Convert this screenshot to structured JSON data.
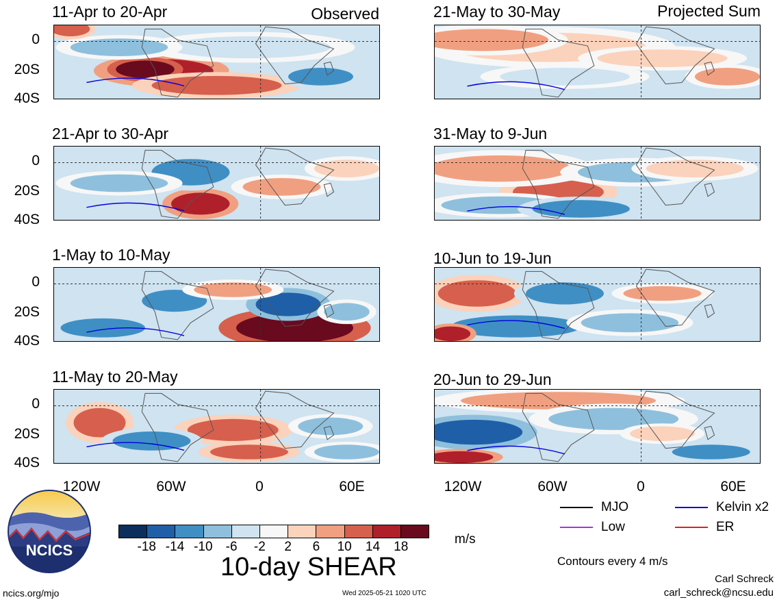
{
  "header": {
    "left_label": "Observed",
    "right_label": "Projected Sum"
  },
  "panels_left": [
    {
      "title": "11-Apr to 20-Apr"
    },
    {
      "title": "21-Apr to 30-Apr"
    },
    {
      "title": "1-May to 10-May"
    },
    {
      "title": "11-May to 20-May"
    }
  ],
  "panels_right": [
    {
      "title": "21-May to 30-May"
    },
    {
      "title": "31-May to 9-Jun"
    },
    {
      "title": "10-Jun to 19-Jun"
    },
    {
      "title": "20-Jun to 29-Jun"
    }
  ],
  "y_axis_labels": [
    "0",
    "20S",
    "40S"
  ],
  "x_axis_labels": [
    "120W",
    "60W",
    "0",
    "60E"
  ],
  "legend": {
    "items": [
      {
        "label": "MJO",
        "color": "#000000"
      },
      {
        "label": "Kelvin x2",
        "color": "#0000dd"
      },
      {
        "label": "Low",
        "color": "#aa33dd"
      },
      {
        "label": "ER",
        "color": "#dd2222"
      }
    ],
    "contours_note": "Contours every 4 m/s"
  },
  "colorbar": {
    "tick_labels": [
      "-18",
      "-14",
      "-10",
      "-6",
      "-2",
      "2",
      "6",
      "10",
      "14",
      "18"
    ],
    "colors": [
      "#0b2e5c",
      "#1f5fa8",
      "#3f8fc5",
      "#8ec0dd",
      "#cfe3f0",
      "#f7f7f7",
      "#fbd2bb",
      "#f0a080",
      "#d6604d",
      "#b0202b",
      "#6a0a1e"
    ],
    "units": "m/s",
    "title": "10-day SHEAR"
  },
  "logo": {
    "text": "NCICS"
  },
  "footer": {
    "url": "ncics.org/mjo",
    "timestamp": "Wed 2025-05-21 1020 UTC",
    "author": "Carl Schreck",
    "email": "carl_schreck@ncsu.edu"
  }
}
